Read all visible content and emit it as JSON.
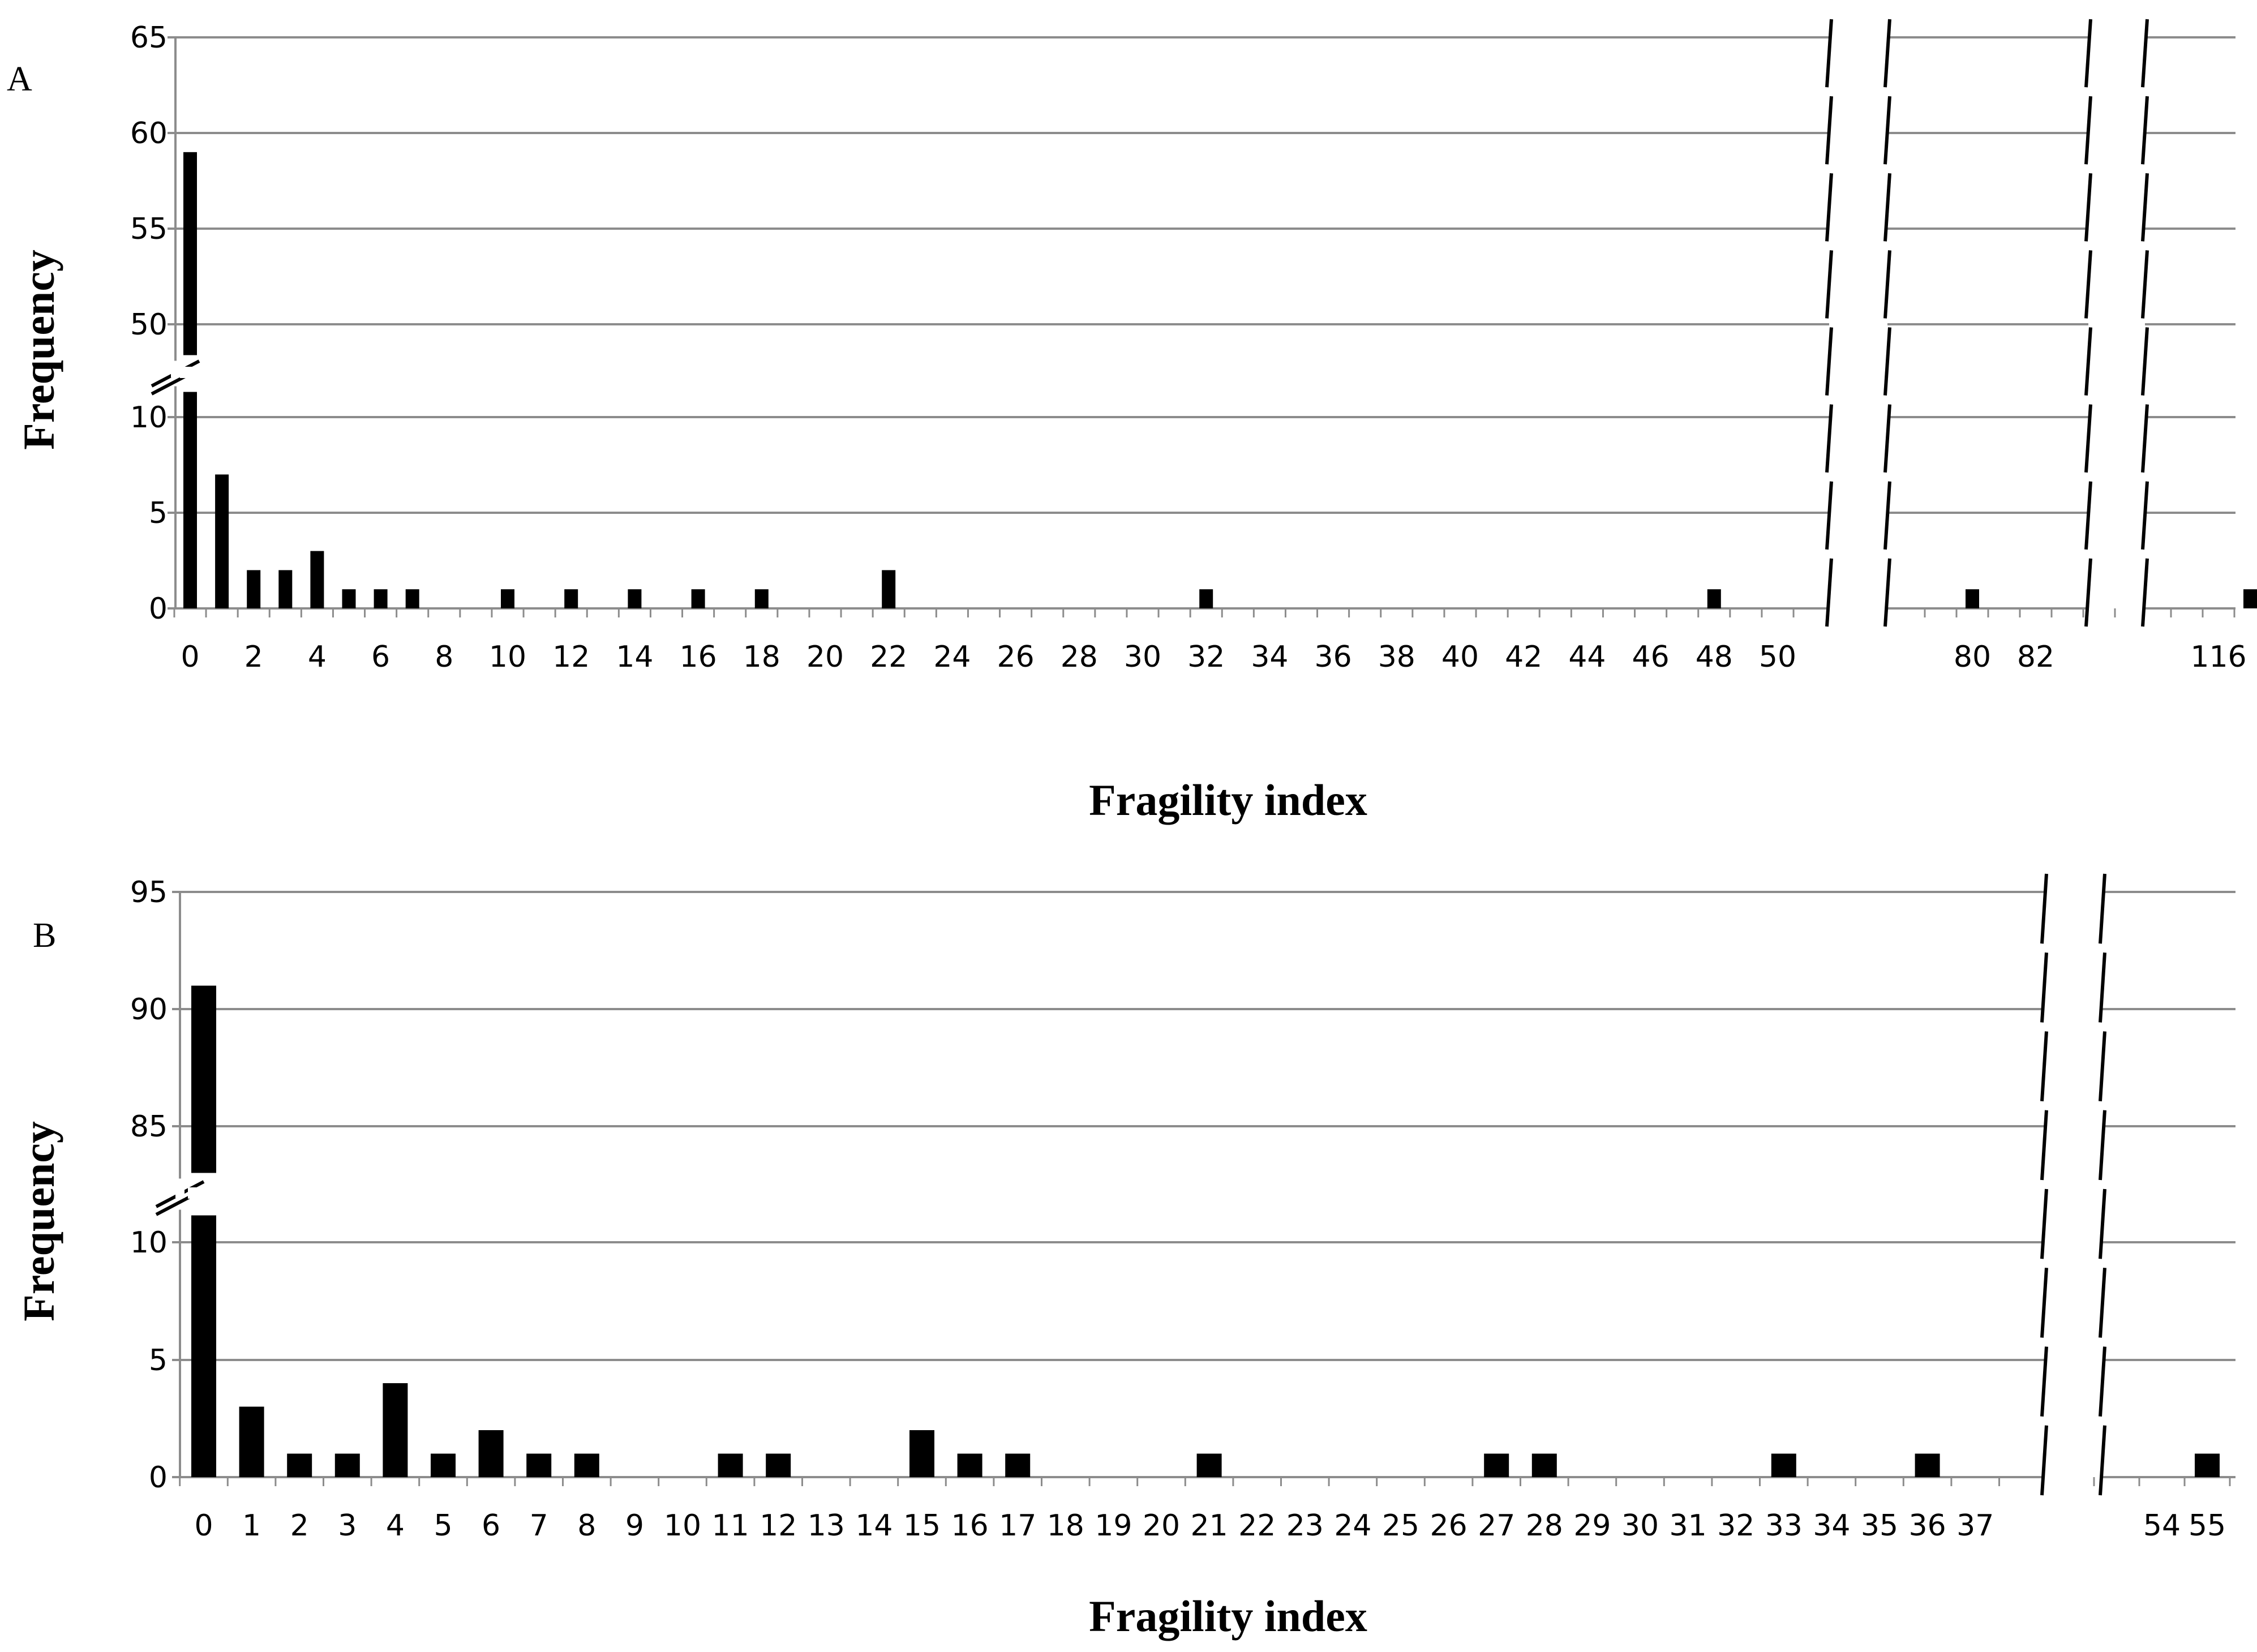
{
  "chart_data": [
    {
      "panel": "A",
      "type": "bar",
      "xlabel": "Fragility index",
      "ylabel": "Frequency",
      "y_axis_break": {
        "lower_range": [
          0,
          10
        ],
        "upper_range": [
          50,
          65
        ]
      },
      "y_ticks_lower": [
        "0",
        "5",
        "10"
      ],
      "y_ticks_upper": [
        "50",
        "55",
        "60",
        "65"
      ],
      "x_segments": [
        {
          "range": [
            0,
            50
          ],
          "labels": [
            "0",
            "2",
            "4",
            "6",
            "8",
            "10",
            "12",
            "14",
            "16",
            "18",
            "20",
            "22",
            "24",
            "26",
            "28",
            "30",
            "32",
            "34",
            "36",
            "38",
            "40",
            "42",
            "44",
            "46",
            "48",
            "50"
          ]
        },
        {
          "range": [
            79,
            84
          ],
          "labels": [
            "80",
            "82"
          ]
        },
        {
          "range": [
            115,
            117
          ],
          "labels": [
            "116"
          ]
        }
      ],
      "x": [
        0,
        1,
        2,
        3,
        4,
        5,
        6,
        7,
        10,
        12,
        14,
        16,
        18,
        22,
        32,
        48,
        80,
        117
      ],
      "values": [
        59,
        7,
        2,
        2,
        3,
        1,
        1,
        1,
        1,
        1,
        1,
        1,
        1,
        2,
        1,
        1,
        1,
        1
      ],
      "colors": {
        "bars": "#000000",
        "grid": "#8c8c8c",
        "axis": "#8c8c8c"
      }
    },
    {
      "panel": "B",
      "type": "bar",
      "xlabel": "Fragility index",
      "ylabel": "Frequency",
      "y_axis_break": {
        "lower_range": [
          0,
          10
        ],
        "upper_range": [
          85,
          95
        ]
      },
      "y_ticks_lower": [
        "0",
        "5",
        "10"
      ],
      "y_ticks_upper": [
        "85",
        "90",
        "95"
      ],
      "x_segments": [
        {
          "range": [
            0,
            37
          ],
          "labels": [
            "0",
            "1",
            "2",
            "3",
            "4",
            "5",
            "6",
            "7",
            "8",
            "9",
            "10",
            "11",
            "12",
            "13",
            "14",
            "15",
            "16",
            "17",
            "18",
            "19",
            "20",
            "21",
            "22",
            "23",
            "24",
            "25",
            "26",
            "27",
            "28",
            "29",
            "30",
            "31",
            "32",
            "33",
            "34",
            "35",
            "36",
            "37"
          ]
        },
        {
          "range": [
            53,
            55
          ],
          "labels": [
            "54",
            "55"
          ]
        }
      ],
      "x": [
        0,
        1,
        2,
        3,
        4,
        5,
        6,
        7,
        8,
        11,
        12,
        15,
        16,
        17,
        21,
        27,
        28,
        33,
        36,
        55
      ],
      "values": [
        91,
        3,
        1,
        1,
        4,
        1,
        2,
        1,
        1,
        1,
        1,
        2,
        1,
        1,
        1,
        1,
        1,
        1,
        1,
        1
      ],
      "colors": {
        "bars": "#000000",
        "grid": "#8c8c8c",
        "axis": "#8c8c8c"
      }
    }
  ]
}
